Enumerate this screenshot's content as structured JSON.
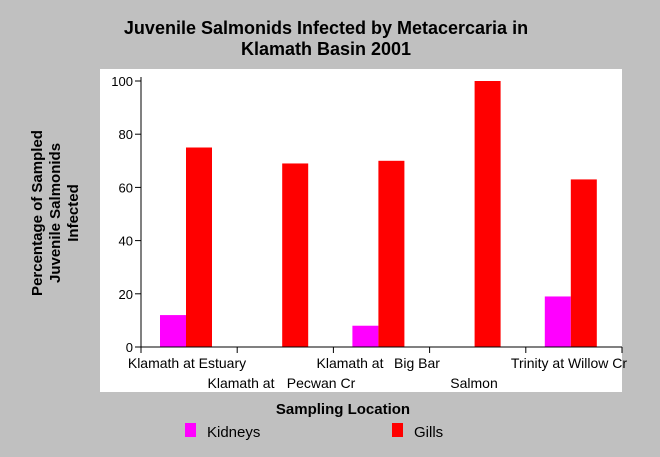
{
  "chart_data": {
    "type": "bar",
    "title_lines": [
      "Juvenile Salmonids Infected by Metacercaria in",
      "Klamath Basin 2001"
    ],
    "xlabel": "Sampling Location",
    "ylabel_lines": [
      "Percentage of Sampled",
      "Juvenile Salmonids",
      "Infected"
    ],
    "ylim": [
      0,
      100
    ],
    "yticks": [
      0,
      20,
      40,
      60,
      80,
      100
    ],
    "categories": [
      "Klamath at Estuary",
      "Klamath at  Pecwan Cr",
      "Klamath at  Big Bar",
      "Salmon",
      "Trinity at Willow Cr"
    ],
    "category_label_parts": [
      [
        "Klamath at Estuary"
      ],
      [
        "Klamath at",
        "Pecwan Cr"
      ],
      [
        "Klamath at",
        "Big Bar"
      ],
      [
        "Salmon"
      ],
      [
        "Trinity at Willow Cr"
      ]
    ],
    "series": [
      {
        "name": "Kidneys",
        "color": "#ff00ff",
        "values": [
          12,
          null,
          8,
          null,
          19
        ]
      },
      {
        "name": "Gills",
        "color": "#ff0000",
        "values": [
          75,
          69,
          70,
          100,
          63
        ]
      }
    ],
    "grid": false,
    "legend_position": "bottom"
  }
}
